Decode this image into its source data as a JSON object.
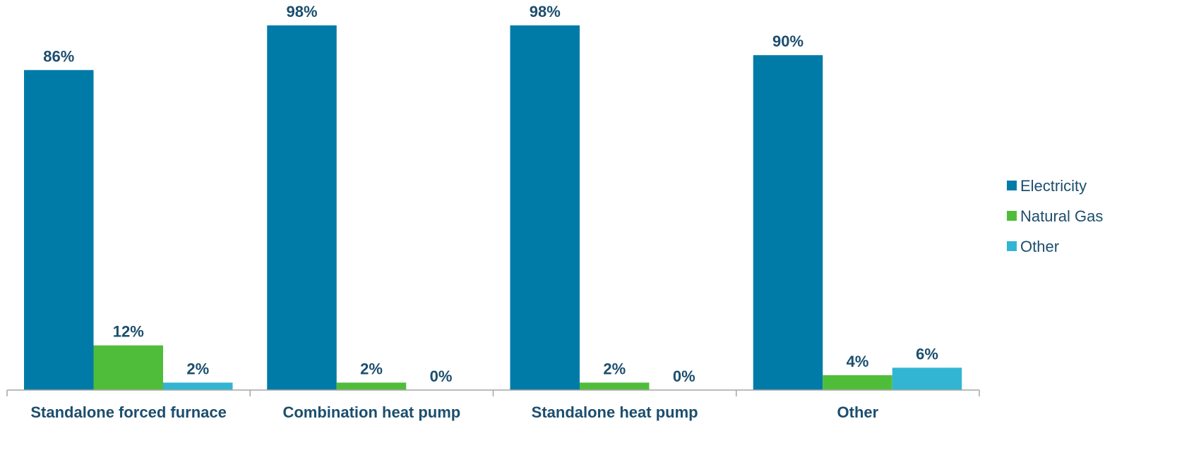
{
  "chart_data": {
    "type": "bar",
    "title": "",
    "xlabel": "",
    "ylabel": "",
    "ylim": [
      0,
      100
    ],
    "grid": false,
    "legend_position": "right",
    "value_suffix": "%",
    "categories": [
      "Standalone forced furnace",
      "Combination heat pump",
      "Standalone heat pump",
      "Other"
    ],
    "series": [
      {
        "name": "Electricity",
        "color": "#007ba7",
        "values": [
          86,
          98,
          98,
          90
        ]
      },
      {
        "name": "Natural Gas",
        "color": "#50bd3a",
        "values": [
          12,
          2,
          2,
          4
        ]
      },
      {
        "name": "Other",
        "color": "#32b5d2",
        "values": [
          2,
          0,
          0,
          6
        ]
      }
    ]
  }
}
